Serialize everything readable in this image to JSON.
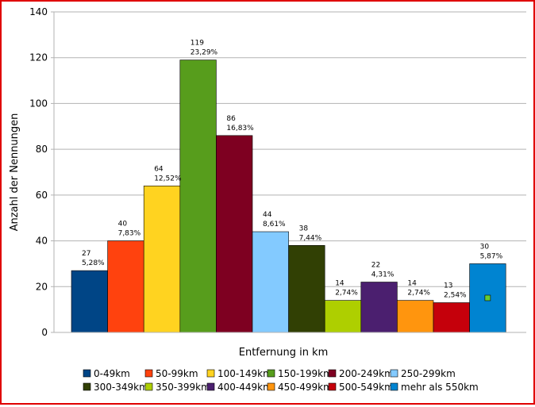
{
  "chart_data": {
    "type": "bar",
    "xlabel": "Entfernung in km",
    "ylabel": "Anzahl der Nennungen",
    "ylim": [
      0,
      140
    ],
    "yticks": [
      0,
      20,
      40,
      60,
      80,
      100,
      120,
      140
    ],
    "grid": true,
    "legend_position": "bottom",
    "series": [
      {
        "name": "0-49km",
        "value": 27,
        "percent": "5,28%",
        "color": "#004586"
      },
      {
        "name": "50-99km",
        "value": 40,
        "percent": "7,83%",
        "color": "#ff420e"
      },
      {
        "name": "100-149km",
        "value": 64,
        "percent": "12,52%",
        "color": "#ffd320"
      },
      {
        "name": "150-199km",
        "value": 119,
        "percent": "23,29%",
        "color": "#579d1c"
      },
      {
        "name": "200-249km",
        "value": 86,
        "percent": "16,83%",
        "color": "#7e0021"
      },
      {
        "name": "250-299km",
        "value": 44,
        "percent": "8,61%",
        "color": "#83caff"
      },
      {
        "name": "300-349km",
        "value": 38,
        "percent": "7,44%",
        "color": "#314004"
      },
      {
        "name": "350-399km",
        "value": 14,
        "percent": "2,74%",
        "color": "#aecf00"
      },
      {
        "name": "400-449km",
        "value": 22,
        "percent": "4,31%",
        "color": "#4b1f6f"
      },
      {
        "name": "450-499km",
        "value": 14,
        "percent": "2,74%",
        "color": "#ff950e"
      },
      {
        "name": "500-549km",
        "value": 13,
        "percent": "2,54%",
        "color": "#c5000b"
      },
      {
        "name": "mehr als 550km",
        "value": 30,
        "percent": "5,87%",
        "color": "#0084d1"
      }
    ]
  }
}
